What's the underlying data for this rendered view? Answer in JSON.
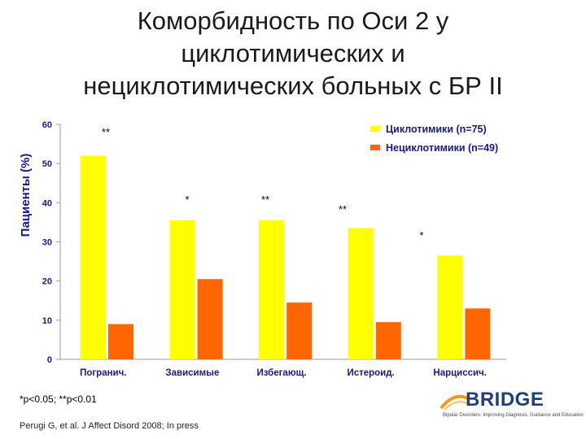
{
  "title_lines": [
    "Коморбидность по Оси 2 у",
    "циклотимических и",
    "нециклотимических больных с БР II"
  ],
  "chart_data": {
    "type": "bar",
    "title": "Коморбидность по Оси 2 у циклотимических и нециклотимических больных с БР II",
    "xlabel": "",
    "ylabel": "Пациенты (%)",
    "ylim": [
      0,
      60
    ],
    "yticks": [
      0,
      10,
      20,
      30,
      40,
      50,
      60
    ],
    "categories": [
      "Погранич.",
      "Зависимые",
      "Избегающ.",
      "Истероид.",
      "Нарциссич."
    ],
    "series": [
      {
        "name": "Циклотимики (n=75)",
        "values": [
          52,
          35.5,
          35.5,
          33.5,
          26.5
        ],
        "color": "#ffff00"
      },
      {
        "name": "Нециклотимики (n=49)",
        "values": [
          9,
          20.5,
          14.5,
          9.5,
          13
        ],
        "color": "#ff6600"
      }
    ],
    "significance": [
      "**",
      "*",
      "**",
      "**",
      "*"
    ],
    "legend_position": "top-right",
    "grid": false
  },
  "colors": {
    "tick_label": "#1a1a7a",
    "axis": "#999999"
  },
  "footnote": "*p<0.05; **p<0.01",
  "citation": "Perugi G, et al. J Affect Disord 2008; In press",
  "logo": {
    "name": "BRIDGE",
    "tagline": "Bipolar Disorders: Improving Diagnosis, Guidance and Education"
  }
}
